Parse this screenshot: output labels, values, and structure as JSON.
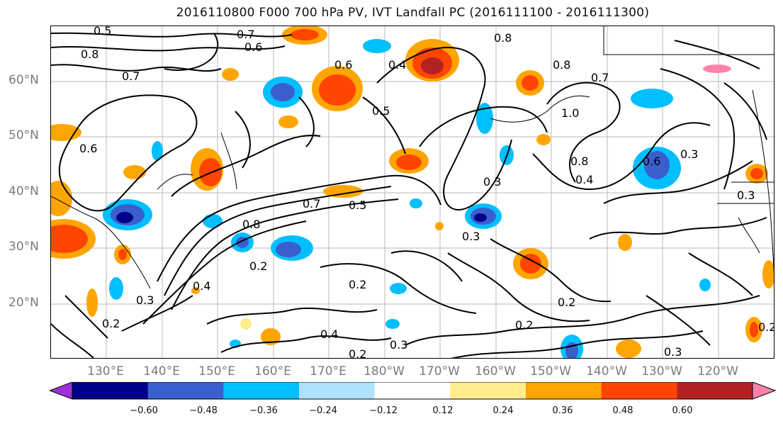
{
  "title": "2016110800 F000 700 hPa PV, IVT Landfall PC (2016111100 - 2016111300)",
  "lat_labels": [
    "60°N",
    "50°N",
    "40°N",
    "30°N",
    "20°N"
  ],
  "lon_labels": [
    "130°E",
    "140°E",
    "150°E",
    "160°E",
    "170°E",
    "180°W",
    "170°W",
    "160°W",
    "150°W",
    "140°W",
    "130°W",
    "120°W"
  ],
  "colorbar": {
    "ticks": [
      "−0.60",
      "−0.48",
      "−0.36",
      "−0.24",
      "−0.12",
      "0.12",
      "0.24",
      "0.36",
      "0.48",
      "0.60"
    ],
    "colors": [
      "#9b30d9",
      "#00008b",
      "#3a5fcd",
      "#00bfff",
      "#b0e2ff",
      "#ffffff",
      "#ffec8b",
      "#ffa500",
      "#ff4500",
      "#b22222",
      "#ff82ab"
    ]
  },
  "contour_labels": [
    "0.5",
    "0.7",
    "0.8",
    "0.6",
    "0.8",
    "0.7",
    "0.6",
    "0.5",
    "0.4",
    "0.3",
    "0.2",
    "0.3",
    "0.8",
    "0.7",
    "1.0",
    "0.8",
    "0.4",
    "0.3",
    "0.2",
    "0.2",
    "0.3",
    "0.2",
    "0.3",
    "0.6",
    "0.3",
    "0.4",
    "0.2",
    "0.5",
    "0.7",
    "0.8",
    "0.6",
    "0.4",
    "0.2",
    "0.3",
    "0.2"
  ],
  "shading_colors": {
    "orange": "#ffa500",
    "red": "#ff4500",
    "dark_red": "#b22222",
    "yellow": "#ffec8b",
    "blue": "#3a5fcd",
    "sky": "#00bfff",
    "dark_blue": "#00008b"
  }
}
